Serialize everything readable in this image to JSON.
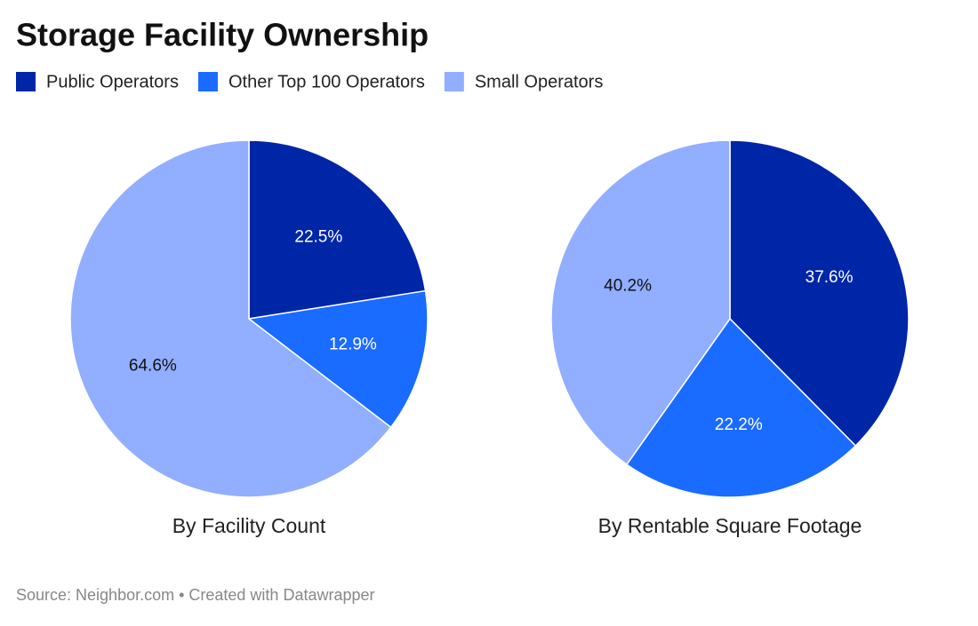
{
  "header": {
    "title": "Storage Facility Ownership"
  },
  "chart_data": [
    {
      "type": "pie",
      "title": "By Facility Count",
      "categories": [
        "Public Operators",
        "Other Top 100 Operators",
        "Small Operators"
      ],
      "values": [
        22.5,
        12.9,
        64.6
      ],
      "value_labels": [
        "22.5%",
        "12.9%",
        "64.6%"
      ],
      "colors": [
        "#0026a8",
        "#1a6bff",
        "#91aeff"
      ]
    },
    {
      "type": "pie",
      "title": "By Rentable Square Footage",
      "categories": [
        "Public Operators",
        "Other Top 100 Operators",
        "Small Operators"
      ],
      "values": [
        37.6,
        22.2,
        40.2
      ],
      "value_labels": [
        "37.6%",
        "22.2%",
        "40.2%"
      ],
      "colors": [
        "#0026a8",
        "#1a6bff",
        "#91aeff"
      ]
    }
  ],
  "footer": {
    "source": "Source: Neighbor.com • Created with Datawrapper"
  }
}
